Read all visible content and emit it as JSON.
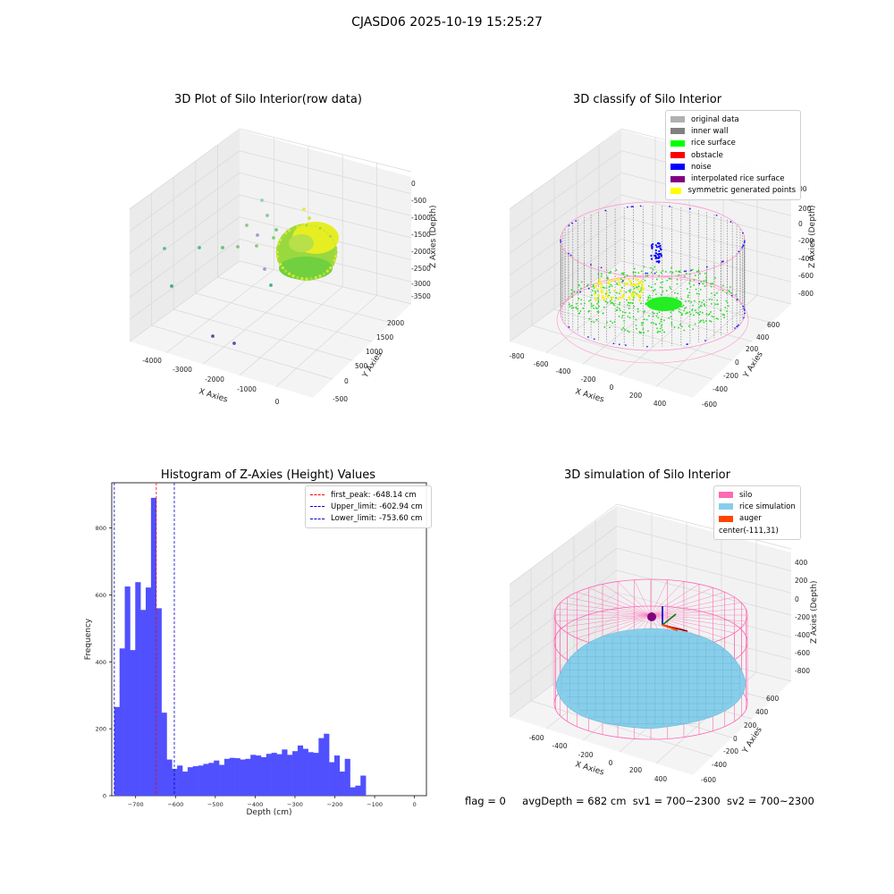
{
  "suptitle": "CJASD06 2025-10-19 15:25:27",
  "footer": {
    "flag": "flag = 0",
    "avg": "avgDepth = 682 cm",
    "sv1": "sv1 = 700~2300",
    "sv2": "sv2 = 700~2300"
  },
  "colors": {
    "hist_bar": "#5050ff",
    "first_peak": "#ff0000",
    "limit": "#0000cc",
    "silo": "#ff69b4",
    "rice_sim": "#87ceeb",
    "auger": "#ff4500"
  },
  "chart_data": [
    {
      "type": "scatter",
      "title": "3D Plot of Silo Interior(row data)",
      "xlabel": "X Axies",
      "ylabel": "Y Axies",
      "zlabel": "Z Axies (Depth)",
      "x_ticks": [
        "-4000",
        "-3000",
        "-2000",
        "-1000",
        "0"
      ],
      "y_ticks": [
        "-500",
        "0",
        "500",
        "1000",
        "1500",
        "2000"
      ],
      "z_ticks": [
        "0",
        "-500",
        "-1000",
        "-1500",
        "-2000",
        "-2500",
        "-3000",
        "-3500"
      ]
    },
    {
      "type": "scatter",
      "title": "3D classify of Silo Interior",
      "xlabel": "X Axies",
      "ylabel": "Y Axies",
      "zlabel": "Z Axies (Depth)",
      "x_ticks": [
        "-800",
        "-600",
        "-400",
        "-200",
        "0",
        "200",
        "400"
      ],
      "y_ticks": [
        "-600",
        "-400",
        "-200",
        "0",
        "200",
        "400",
        "600"
      ],
      "z_ticks": [
        "200",
        "0",
        "-200",
        "-400",
        "-600",
        "-800"
      ],
      "z_partial_tick": "00",
      "legend": [
        {
          "label": "original data",
          "color": "#b0b0b0"
        },
        {
          "label": "inner wall",
          "color": "#808080"
        },
        {
          "label": "rice surface",
          "color": "#00ff00"
        },
        {
          "label": "obstacle",
          "color": "#ff0000"
        },
        {
          "label": "noise",
          "color": "#0000ff"
        },
        {
          "label": "interpolated rice surface",
          "color": "#800080"
        },
        {
          "label": "symmetric generated points",
          "color": "#ffff00"
        }
      ]
    },
    {
      "type": "bar",
      "title": "Histogram of Z-Axies (Height) Values",
      "xlabel": "Depth (cm)",
      "ylabel": "Frequency",
      "xlim": [
        -760,
        30
      ],
      "ylim": [
        0,
        935
      ],
      "x_ticks": [
        -700,
        -600,
        -500,
        -400,
        -300,
        -200,
        -100,
        0
      ],
      "y_ticks": [
        0,
        200,
        400,
        600,
        800
      ],
      "bin_start": -753.6,
      "bin_width": 13.15,
      "values": [
        265,
        440,
        625,
        435,
        638,
        555,
        622,
        890,
        560,
        248,
        108,
        80,
        90,
        72,
        85,
        88,
        90,
        95,
        98,
        105,
        92,
        110,
        113,
        112,
        108,
        110,
        122,
        120,
        115,
        125,
        128,
        124,
        138,
        122,
        133,
        150,
        140,
        130,
        128,
        172,
        185,
        100,
        120,
        72,
        110,
        25,
        30,
        60
      ],
      "vlines": [
        {
          "label": "first_peak: -648.14 cm",
          "x": -648.14,
          "color": "#ff0000"
        },
        {
          "label": "Upper_limit: -602.94 cm",
          "x": -602.94,
          "color": "#0000cc"
        },
        {
          "label": "Lower_limit: -753.60 cm",
          "x": -753.6,
          "color": "#0000cc"
        }
      ]
    },
    {
      "type": "scatter",
      "title": "3D simulation of Silo Interior",
      "xlabel": "X Axies",
      "ylabel": "Y Axies",
      "zlabel": "Z Axies (Depth)",
      "x_ticks": [
        "-600",
        "-400",
        "-200",
        "0",
        "200",
        "400"
      ],
      "y_ticks": [
        "-600",
        "-400",
        "-200",
        "0",
        "200",
        "400",
        "600"
      ],
      "z_ticks": [
        "400",
        "200",
        "0",
        "-200",
        "-400",
        "-600",
        "-800"
      ],
      "legend": [
        {
          "label": "silo",
          "color": "#ff69b4"
        },
        {
          "label": "rice simulation",
          "color": "#87ceeb"
        },
        {
          "label": "auger",
          "color": "#ff4500"
        },
        {
          "label": "center(-111,31)",
          "color": ""
        }
      ]
    }
  ]
}
